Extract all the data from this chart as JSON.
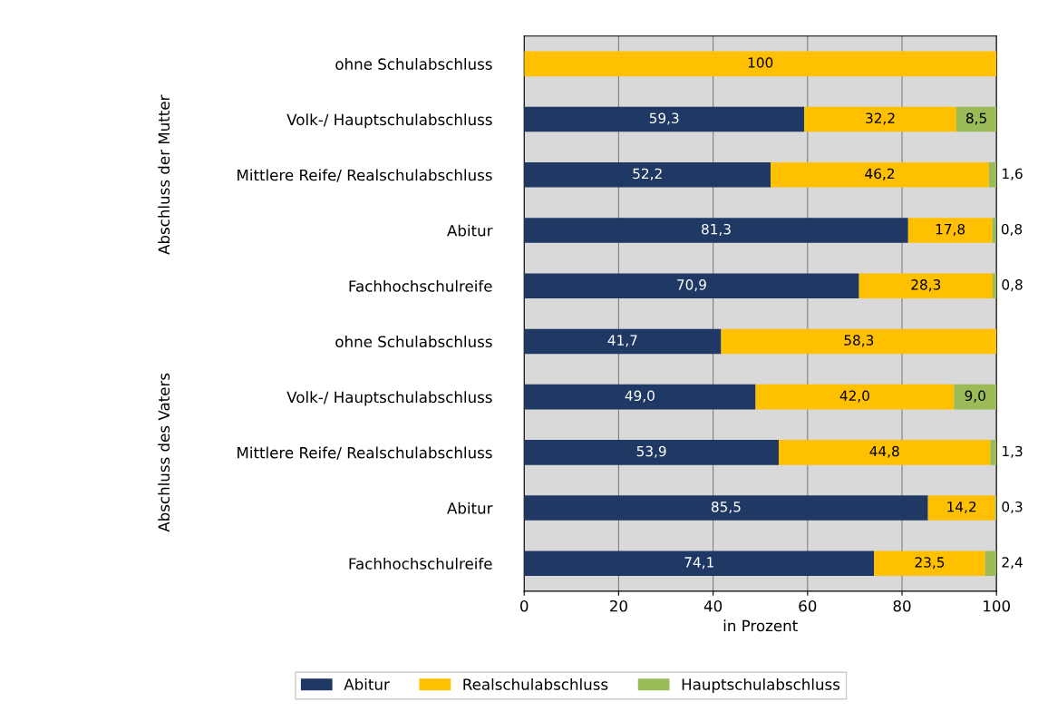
{
  "chart_data": {
    "type": "bar",
    "orientation": "horizontal",
    "stacked": true,
    "categories": [
      "ohne Schulabschluss",
      "Volk-/ Hauptschulabschluss",
      "Mittlere Reife/ Realschulabschluss",
      "Abitur",
      "Fachhochschulreife",
      "ohne Schulabschluss",
      "Volk-/ Hauptschulabschluss",
      "Mittlere Reife/ Realschulabschluss",
      "Abitur",
      "Fachhochschulreife"
    ],
    "series": [
      {
        "name": "Abitur",
        "color": "#1f3864",
        "values": [
          null,
          59.3,
          52.2,
          81.3,
          70.9,
          41.7,
          49.0,
          53.9,
          85.5,
          74.1
        ],
        "value_labels": [
          null,
          "59,3",
          "52,2",
          "81,3",
          "70,9",
          "41,7",
          "49,0",
          "53,9",
          "85,5",
          "74,1"
        ]
      },
      {
        "name": "Realschulabschluss",
        "color": "#ffc000",
        "values": [
          100,
          32.2,
          46.2,
          17.8,
          28.3,
          58.3,
          42.0,
          44.8,
          14.2,
          23.5
        ],
        "value_labels": [
          "100",
          "32,2",
          "46,2",
          "17,8",
          "28,3",
          "58,3",
          "42,0",
          "44,8",
          "14,2",
          "23,5"
        ]
      },
      {
        "name": "Hauptschulabschluss",
        "color": "#9bbb59",
        "values": [
          null,
          8.5,
          1.6,
          0.8,
          0.8,
          null,
          9.0,
          1.3,
          0.3,
          2.4
        ],
        "value_labels": [
          null,
          "8,5",
          "1,6",
          "0,8",
          "0,8",
          null,
          "9,0",
          "1,3",
          "0,3",
          "2,4"
        ]
      }
    ],
    "xlim": [
      0,
      100
    ],
    "xticks": [
      0,
      20,
      40,
      60,
      80,
      100
    ],
    "xlabel": "in Prozent",
    "grid": "x",
    "legend": "bottom",
    "annotations": [
      "Abschluss der Mutter",
      "Abschluss des Vaters"
    ]
  }
}
